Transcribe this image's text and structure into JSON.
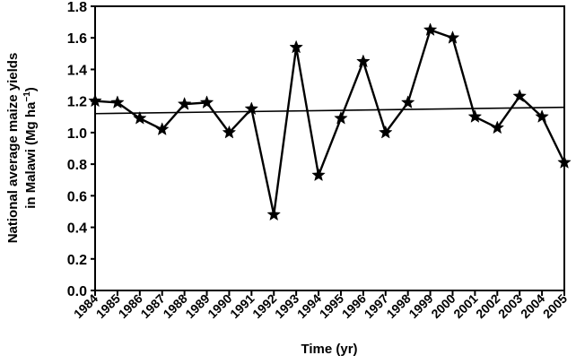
{
  "chart_data": {
    "type": "line",
    "title": "",
    "xlabel": "Time (yr)",
    "ylabel_line1": "National average maize yields",
    "ylabel_line2": "in Malawi (Mg ha",
    "ylabel_sup": "−1",
    "ylabel_close": ")",
    "ylim": [
      0.0,
      1.8
    ],
    "yticks": [
      "0.0",
      "0.2",
      "0.4",
      "0.6",
      "0.8",
      "1.0",
      "1.2",
      "1.4",
      "1.6",
      "1.8"
    ],
    "grid": false,
    "legend": "none",
    "x": [
      "1984",
      "1985",
      "1986",
      "1987",
      "1988",
      "1989",
      "1990",
      "1991",
      "1992",
      "1993",
      "1994",
      "1995",
      "1996",
      "1997",
      "1998",
      "1999",
      "2000",
      "2001",
      "2002",
      "2003",
      "2004",
      "2005"
    ],
    "series": [
      {
        "name": "Maize yield",
        "marker": "star",
        "values": [
          1.2,
          1.19,
          1.09,
          1.02,
          1.18,
          1.19,
          1.0,
          1.15,
          0.48,
          1.54,
          0.73,
          1.09,
          1.45,
          1.0,
          1.19,
          1.65,
          1.6,
          1.1,
          1.03,
          1.23,
          1.1,
          0.81
        ]
      },
      {
        "name": "Linear trend",
        "marker": "none",
        "values_start_end": [
          1.12,
          1.16
        ]
      }
    ],
    "colors": {
      "line": "#000000",
      "background": "#ffffff"
    }
  }
}
